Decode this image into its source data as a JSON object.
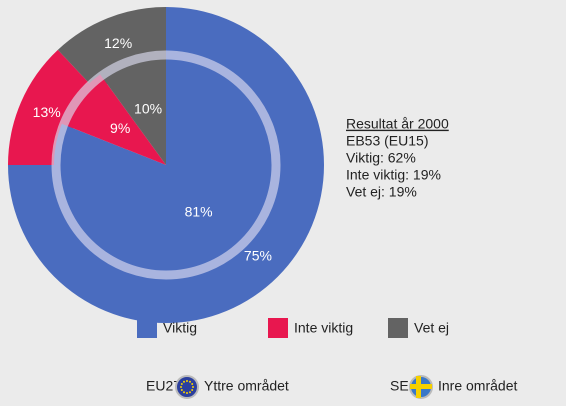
{
  "chart_data": {
    "type": "pie",
    "categories": [
      "Viktig",
      "Inte viktig",
      "Vet ej"
    ],
    "colors": [
      "#4a6cbf",
      "#e8174f",
      "#636363"
    ],
    "series": [
      {
        "name": "EU27",
        "ring_label": "Yttre området",
        "values": [
          75,
          13,
          12
        ],
        "value_labels": [
          "75%",
          "13%",
          "12%"
        ]
      },
      {
        "name": "SE",
        "ring_label": "Inre området",
        "values": [
          81,
          9,
          10
        ],
        "value_labels": [
          "81%",
          "9%",
          "10%"
        ]
      }
    ],
    "note": [
      "Resultat år 2000",
      "EB53 (EU15)",
      "Viktig: 62%",
      "Inte viktig: 19%",
      "Vet ej: 19%"
    ]
  }
}
